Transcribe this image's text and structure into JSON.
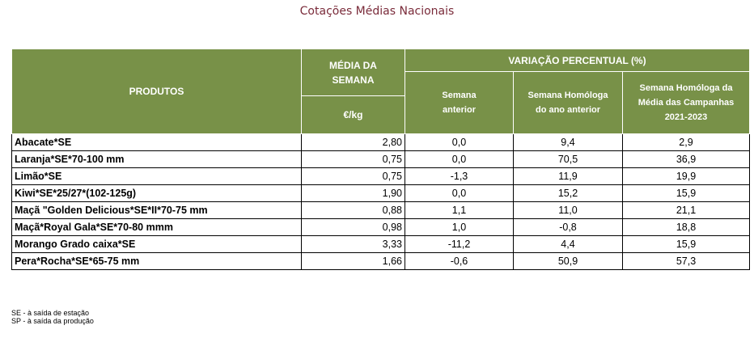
{
  "title": "Cotações Médias Nacionais",
  "table": {
    "headers": {
      "produtos": "PRODUTOS",
      "media": "MÉDIA DA SEMANA",
      "unit": "€/kg",
      "variacao": "VARIAÇÃO PERCENTUAL (%)",
      "sem_anterior": "Semana anterior",
      "homologa_ano": "Semana Homóloga do ano anterior",
      "homologa_media": "Semana Homóloga da Média das Campanhas 2021-2023"
    },
    "rows": [
      {
        "produto": "Abacate*SE",
        "media": "2,80",
        "anterior": "0,0",
        "homologa": "9,4",
        "campanhas": "2,9"
      },
      {
        "produto": "Laranja*SE*70-100 mm",
        "media": "0,75",
        "anterior": "0,0",
        "homologa": "70,5",
        "campanhas": "36,9"
      },
      {
        "produto": "Limão*SE",
        "media": "0,75",
        "anterior": "-1,3",
        "homologa": "11,9",
        "campanhas": "19,9"
      },
      {
        "produto": "Kiwi*SE*25/27*(102-125g)",
        "media": "1,90",
        "anterior": "0,0",
        "homologa": "15,2",
        "campanhas": "15,9"
      },
      {
        "produto": "Maçã \"Golden Delicious*SE*II*70-75 mm",
        "media": "0,88",
        "anterior": "1,1",
        "homologa": "11,0",
        "campanhas": "21,1"
      },
      {
        "produto": "Maçã*Royal Gala*SE*70-80 mmm",
        "media": "0,98",
        "anterior": "1,0",
        "homologa": "-0,8",
        "campanhas": "18,8"
      },
      {
        "produto": "Morango Grado caixa*SE",
        "media": "3,33",
        "anterior": "-11,2",
        "homologa": "4,4",
        "campanhas": "15,9"
      },
      {
        "produto": "Pera*Rocha*SE*65-75 mm",
        "media": "1,66",
        "anterior": "-0,6",
        "homologa": "50,9",
        "campanhas": "57,3"
      }
    ]
  },
  "notes": [
    "SE - à saída de estação",
    "SP - à saída da produção"
  ]
}
